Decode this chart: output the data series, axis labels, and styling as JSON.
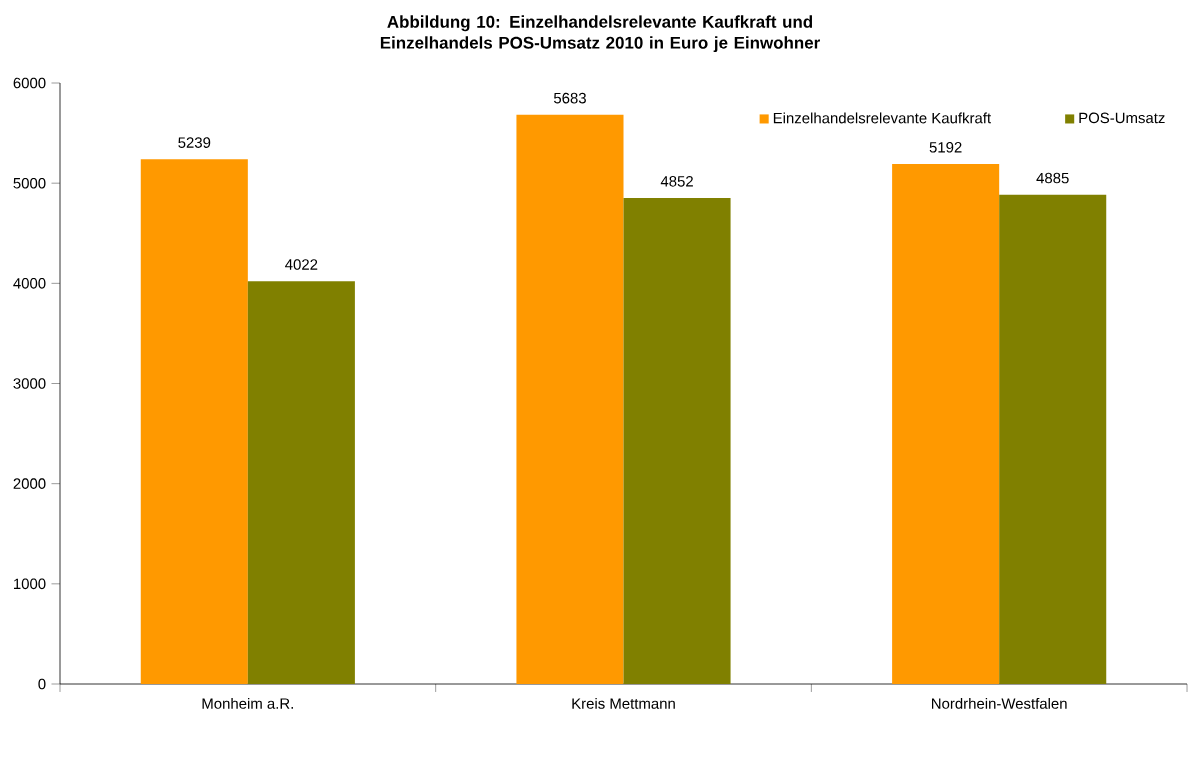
{
  "chart_data": {
    "type": "bar",
    "title": "Abbildung 10: Einzelhandelsrelevante Kaufkraft und Einzelhandels POS-Umsatz 2010 in Euro je Einwohner",
    "categories": [
      "Monheim a.R.",
      "Kreis Mettmann",
      "Nordrhein-Westfalen"
    ],
    "series": [
      {
        "name": "Einzelhandelsrelevante Kaufkraft",
        "color": "#ff9900",
        "values": [
          5239,
          5683,
          5192
        ]
      },
      {
        "name": "POS-Umsatz",
        "color": "#808000",
        "values": [
          4022,
          4852,
          4885
        ]
      }
    ],
    "ylim": [
      0,
      6000
    ],
    "yticks": [
      0,
      1000,
      2000,
      3000,
      4000,
      5000,
      6000
    ],
    "data_labels": true,
    "legend": "top right",
    "grid": false
  }
}
